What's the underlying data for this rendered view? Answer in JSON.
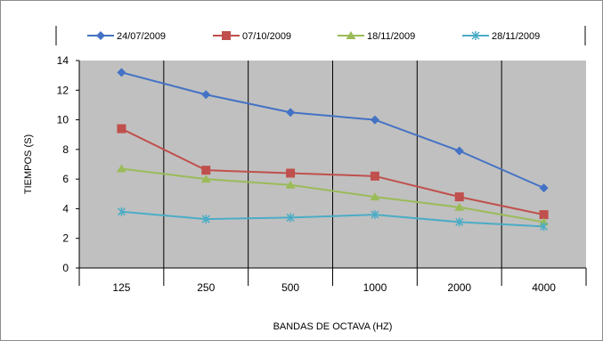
{
  "chart_data": {
    "type": "line",
    "categories": [
      "125",
      "250",
      "500",
      "1000",
      "2000",
      "4000"
    ],
    "series": [
      {
        "name": "24/07/2009",
        "color": "#4472C4",
        "marker": "diamond",
        "values": [
          13.2,
          11.7,
          10.5,
          10.0,
          7.9,
          5.4
        ]
      },
      {
        "name": "07/10/2009",
        "color": "#C0504D",
        "marker": "square",
        "values": [
          9.4,
          6.6,
          6.4,
          6.2,
          4.8,
          3.6
        ]
      },
      {
        "name": "18/11/2009",
        "color": "#9BBB59",
        "marker": "triangle",
        "values": [
          6.7,
          6.0,
          5.6,
          4.8,
          4.1,
          3.1
        ]
      },
      {
        "name": "28/11/2009",
        "color": "#4BACC6",
        "marker": "star",
        "values": [
          3.8,
          3.3,
          3.4,
          3.6,
          3.1,
          2.8
        ]
      }
    ],
    "xlabel": "BANDAS DE OCTAVA (HZ)",
    "ylabel": "TIEMPOS (S)",
    "ylim": [
      0,
      14
    ],
    "yticks": [
      "0",
      "2",
      "4",
      "6",
      "8",
      "10",
      "12",
      "14"
    ],
    "grid": false,
    "plot_background": "#C0C0C0",
    "legend_position": "top"
  }
}
